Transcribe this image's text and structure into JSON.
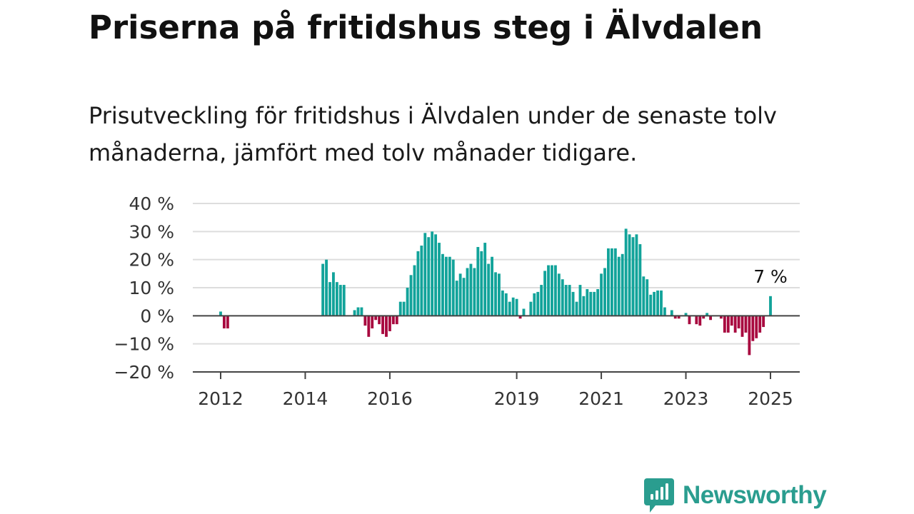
{
  "title": "Priserna på fritidshus steg i Älvdalen",
  "subtitle": "Prisutveckling för fritidshus i Älvdalen under de senaste tolv månaderna, jämfört med tolv månader tidigare.",
  "brand": {
    "name": "Newsworthy",
    "color": "#2a9d8f",
    "icon": "newsworthy-chat-bars-icon"
  },
  "colors": {
    "positive": "#12a39a",
    "negative": "#a8093f",
    "grid": "#dddddd",
    "zero_line": "#444444",
    "axis": "#444444"
  },
  "chart_data": {
    "type": "bar",
    "ylim": [
      -20,
      40
    ],
    "yticks": [
      {
        "value": 40,
        "label": "40 %"
      },
      {
        "value": 30,
        "label": "30 %"
      },
      {
        "value": 20,
        "label": "20 %"
      },
      {
        "value": 10,
        "label": "10 %"
      },
      {
        "value": 0,
        "label": "0 %"
      },
      {
        "value": -10,
        "label": "−10 %"
      },
      {
        "value": -20,
        "label": "−20 %"
      }
    ],
    "xticks": [
      {
        "date": "2012-01",
        "label": "2012"
      },
      {
        "date": "2014-01",
        "label": "2014"
      },
      {
        "date": "2016-01",
        "label": "2016"
      },
      {
        "date": "2019-01",
        "label": "2019"
      },
      {
        "date": "2021-01",
        "label": "2021"
      },
      {
        "date": "2023-01",
        "label": "2023"
      },
      {
        "date": "2025-01",
        "label": "2025"
      }
    ],
    "grid": true,
    "annotation": {
      "date": "2025-01",
      "value": 7,
      "label": "7 %"
    },
    "series": [
      {
        "data": [
          [
            "2012-01",
            1.5
          ],
          [
            "2012-02",
            -4.5
          ],
          [
            "2012-03",
            -4.5
          ],
          [
            "2014-06",
            18.5
          ],
          [
            "2014-07",
            20
          ],
          [
            "2014-08",
            12
          ],
          [
            "2014-09",
            15.5
          ],
          [
            "2014-10",
            12
          ],
          [
            "2014-11",
            11
          ],
          [
            "2014-12",
            11
          ],
          [
            "2015-03",
            2
          ],
          [
            "2015-04",
            3
          ],
          [
            "2015-05",
            3
          ],
          [
            "2015-06",
            -3.5
          ],
          [
            "2015-07",
            -7.5
          ],
          [
            "2015-08",
            -4.5
          ],
          [
            "2015-09",
            -1.5
          ],
          [
            "2015-10",
            -3
          ],
          [
            "2015-11",
            -6.5
          ],
          [
            "2015-12",
            -7.5
          ],
          [
            "2016-01",
            -5.5
          ],
          [
            "2016-02",
            -3
          ],
          [
            "2016-03",
            -3
          ],
          [
            "2016-04",
            5
          ],
          [
            "2016-05",
            5
          ],
          [
            "2016-06",
            10
          ],
          [
            "2016-07",
            14.5
          ],
          [
            "2016-08",
            18
          ],
          [
            "2016-09",
            23
          ],
          [
            "2016-10",
            25
          ],
          [
            "2016-11",
            29.5
          ],
          [
            "2016-12",
            28
          ],
          [
            "2017-01",
            30
          ],
          [
            "2017-02",
            29
          ],
          [
            "2017-03",
            26
          ],
          [
            "2017-04",
            22
          ],
          [
            "2017-05",
            21
          ],
          [
            "2017-06",
            21
          ],
          [
            "2017-07",
            20
          ],
          [
            "2017-08",
            12.5
          ],
          [
            "2017-09",
            15
          ],
          [
            "2017-10",
            13.5
          ],
          [
            "2017-11",
            17
          ],
          [
            "2017-12",
            18.5
          ],
          [
            "2018-01",
            17
          ],
          [
            "2018-02",
            24.5
          ],
          [
            "2018-03",
            23
          ],
          [
            "2018-04",
            26
          ],
          [
            "2018-05",
            18.5
          ],
          [
            "2018-06",
            21
          ],
          [
            "2018-07",
            15.5
          ],
          [
            "2018-08",
            15
          ],
          [
            "2018-09",
            9
          ],
          [
            "2018-10",
            8
          ],
          [
            "2018-11",
            5
          ],
          [
            "2018-12",
            6.5
          ],
          [
            "2019-01",
            6
          ],
          [
            "2019-02",
            -1
          ],
          [
            "2019-03",
            2.5
          ],
          [
            "2019-05",
            5
          ],
          [
            "2019-06",
            8
          ],
          [
            "2019-07",
            8.5
          ],
          [
            "2019-08",
            11
          ],
          [
            "2019-09",
            16
          ],
          [
            "2019-10",
            18
          ],
          [
            "2019-11",
            18
          ],
          [
            "2019-12",
            18
          ],
          [
            "2020-01",
            15
          ],
          [
            "2020-02",
            13
          ],
          [
            "2020-03",
            11
          ],
          [
            "2020-04",
            11
          ],
          [
            "2020-05",
            8.5
          ],
          [
            "2020-06",
            5
          ],
          [
            "2020-07",
            11
          ],
          [
            "2020-08",
            7
          ],
          [
            "2020-09",
            9.5
          ],
          [
            "2020-10",
            8.5
          ],
          [
            "2020-11",
            8.5
          ],
          [
            "2020-12",
            9.5
          ],
          [
            "2021-01",
            15
          ],
          [
            "2021-02",
            17
          ],
          [
            "2021-03",
            24
          ],
          [
            "2021-04",
            24
          ],
          [
            "2021-05",
            24
          ],
          [
            "2021-06",
            21
          ],
          [
            "2021-07",
            22
          ],
          [
            "2021-08",
            31
          ],
          [
            "2021-09",
            29
          ],
          [
            "2021-10",
            28
          ],
          [
            "2021-11",
            29
          ],
          [
            "2021-12",
            25.5
          ],
          [
            "2022-01",
            14
          ],
          [
            "2022-02",
            13
          ],
          [
            "2022-03",
            7.5
          ],
          [
            "2022-04",
            8.5
          ],
          [
            "2022-05",
            9
          ],
          [
            "2022-06",
            9
          ],
          [
            "2022-07",
            3
          ],
          [
            "2022-09",
            2
          ],
          [
            "2022-10",
            -1
          ],
          [
            "2022-11",
            -1
          ],
          [
            "2023-01",
            1
          ],
          [
            "2023-02",
            -3
          ],
          [
            "2023-04",
            -3
          ],
          [
            "2023-05",
            -3.5
          ],
          [
            "2023-06",
            -1
          ],
          [
            "2023-07",
            1
          ],
          [
            "2023-08",
            -1.5
          ],
          [
            "2023-11",
            -1
          ],
          [
            "2023-12",
            -6
          ],
          [
            "2024-01",
            -6
          ],
          [
            "2024-02",
            -3.5
          ],
          [
            "2024-03",
            -6
          ],
          [
            "2024-04",
            -4.5
          ],
          [
            "2024-05",
            -7.5
          ],
          [
            "2024-06",
            -6
          ],
          [
            "2024-07",
            -14
          ],
          [
            "2024-08",
            -9
          ],
          [
            "2024-09",
            -8
          ],
          [
            "2024-10",
            -6
          ],
          [
            "2024-11",
            -4
          ],
          [
            "2025-01",
            7
          ]
        ]
      }
    ]
  }
}
